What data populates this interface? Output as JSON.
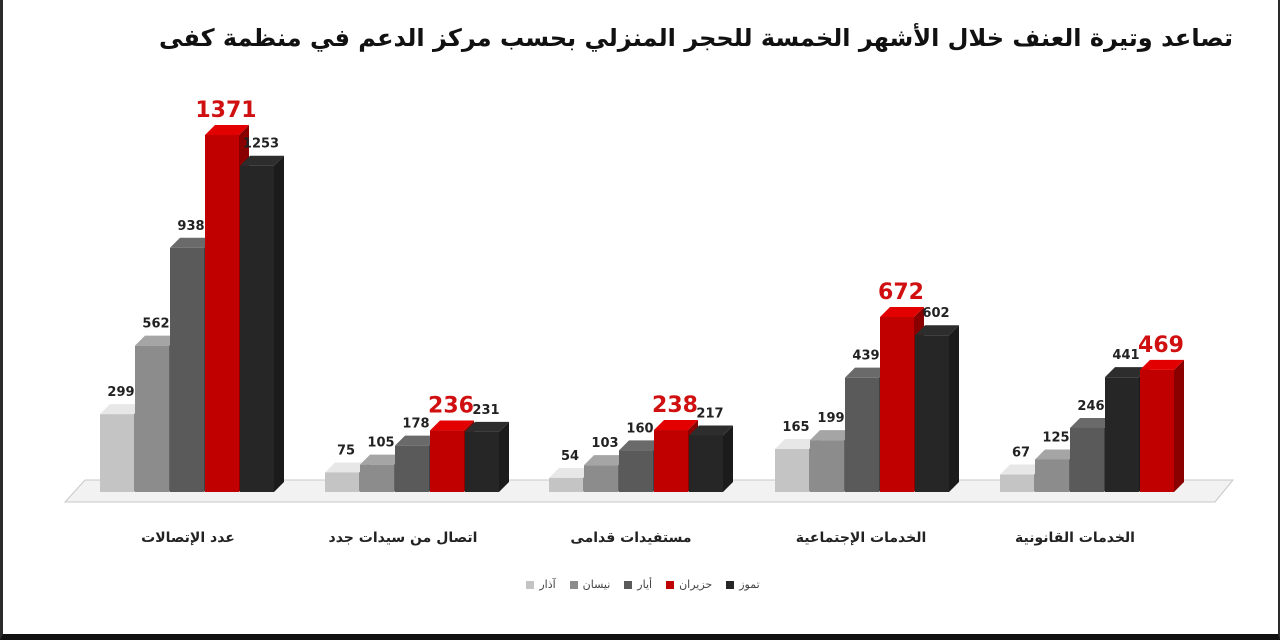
{
  "colors": {
    "series": [
      "#c4c4c4",
      "#8c8c8c",
      "#5a5a5a",
      "#c00000",
      "#262626"
    ],
    "highlight_label": "#d01010",
    "label": "#222222"
  },
  "chart_data": {
    "type": "bar",
    "title": "تصاعد وتيرة العنف خلال الأشهر الخمسة للحجر المنزلي بحسب مركز الدعم في منظمة كفى",
    "categories": [
      "عدد الإتصالات",
      "اتصال من سيدات جدد",
      "مستفيدات قدامى",
      "الخدمات الإجتماعية",
      "الخدمات القانونية"
    ],
    "series": [
      {
        "name": "آذار",
        "values": [
          299,
          75,
          54,
          165,
          67
        ]
      },
      {
        "name": "نيسان",
        "values": [
          562,
          105,
          103,
          199,
          125
        ]
      },
      {
        "name": "أيار",
        "values": [
          938,
          178,
          160,
          439,
          246
        ]
      },
      {
        "name": "حزيران",
        "values": [
          1371,
          236,
          238,
          672,
          469
        ]
      },
      {
        "name": "تموز",
        "values": [
          1253,
          231,
          217,
          602,
          441
        ]
      }
    ],
    "bar_order": [
      [
        0,
        1,
        2,
        3,
        4
      ],
      [
        0,
        1,
        2,
        3,
        4
      ],
      [
        0,
        1,
        2,
        3,
        4
      ],
      [
        0,
        1,
        2,
        3,
        4
      ],
      [
        0,
        1,
        2,
        4,
        3
      ]
    ],
    "highlight_series": "حزيران",
    "legend_position": "bottom",
    "grid": false,
    "ylim": [
      0,
      1500
    ]
  }
}
